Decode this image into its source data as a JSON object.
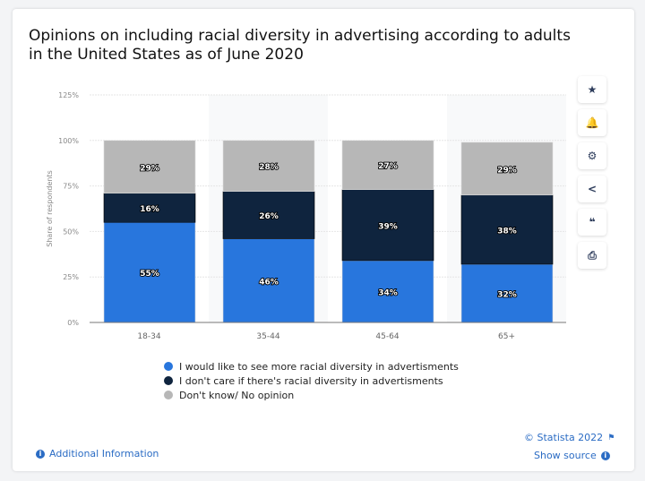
{
  "title": "Opinions on including racial diversity in advertising according to adults\n in the United States as of June 2020",
  "chart_data": {
    "type": "bar",
    "stacked": true,
    "categories": [
      "18-34",
      "35-44",
      "45-64",
      "65+"
    ],
    "series": [
      {
        "name": "I would like to see more racial diversity in advertisments",
        "color": "#2876dd",
        "values": [
          55,
          46,
          34,
          32
        ]
      },
      {
        "name": "I don't care if there's racial diversity in advertisments",
        "color": "#0f243e",
        "values": [
          16,
          26,
          39,
          38
        ]
      },
      {
        "name": "Don't know/ No opinion",
        "color": "#b7b7b7",
        "values": [
          29,
          28,
          27,
          29
        ]
      }
    ],
    "ylabel": "Share of respondents",
    "ylim": [
      0,
      125
    ],
    "yticks": [
      "0%",
      "25%",
      "50%",
      "75%",
      "100%",
      "125%"
    ],
    "legend_position": "bottom",
    "grid": true
  },
  "sidebar": {
    "icons": [
      "star-icon",
      "bell-icon",
      "gear-icon",
      "share-icon",
      "quote-icon",
      "print-icon"
    ],
    "glyphs": [
      "★",
      "🔔",
      "⚙",
      "<",
      "❝",
      "⎙"
    ]
  },
  "footer": {
    "additional_info": "Additional Information",
    "copyright": "© Statista 2022",
    "show_source": "Show source"
  }
}
